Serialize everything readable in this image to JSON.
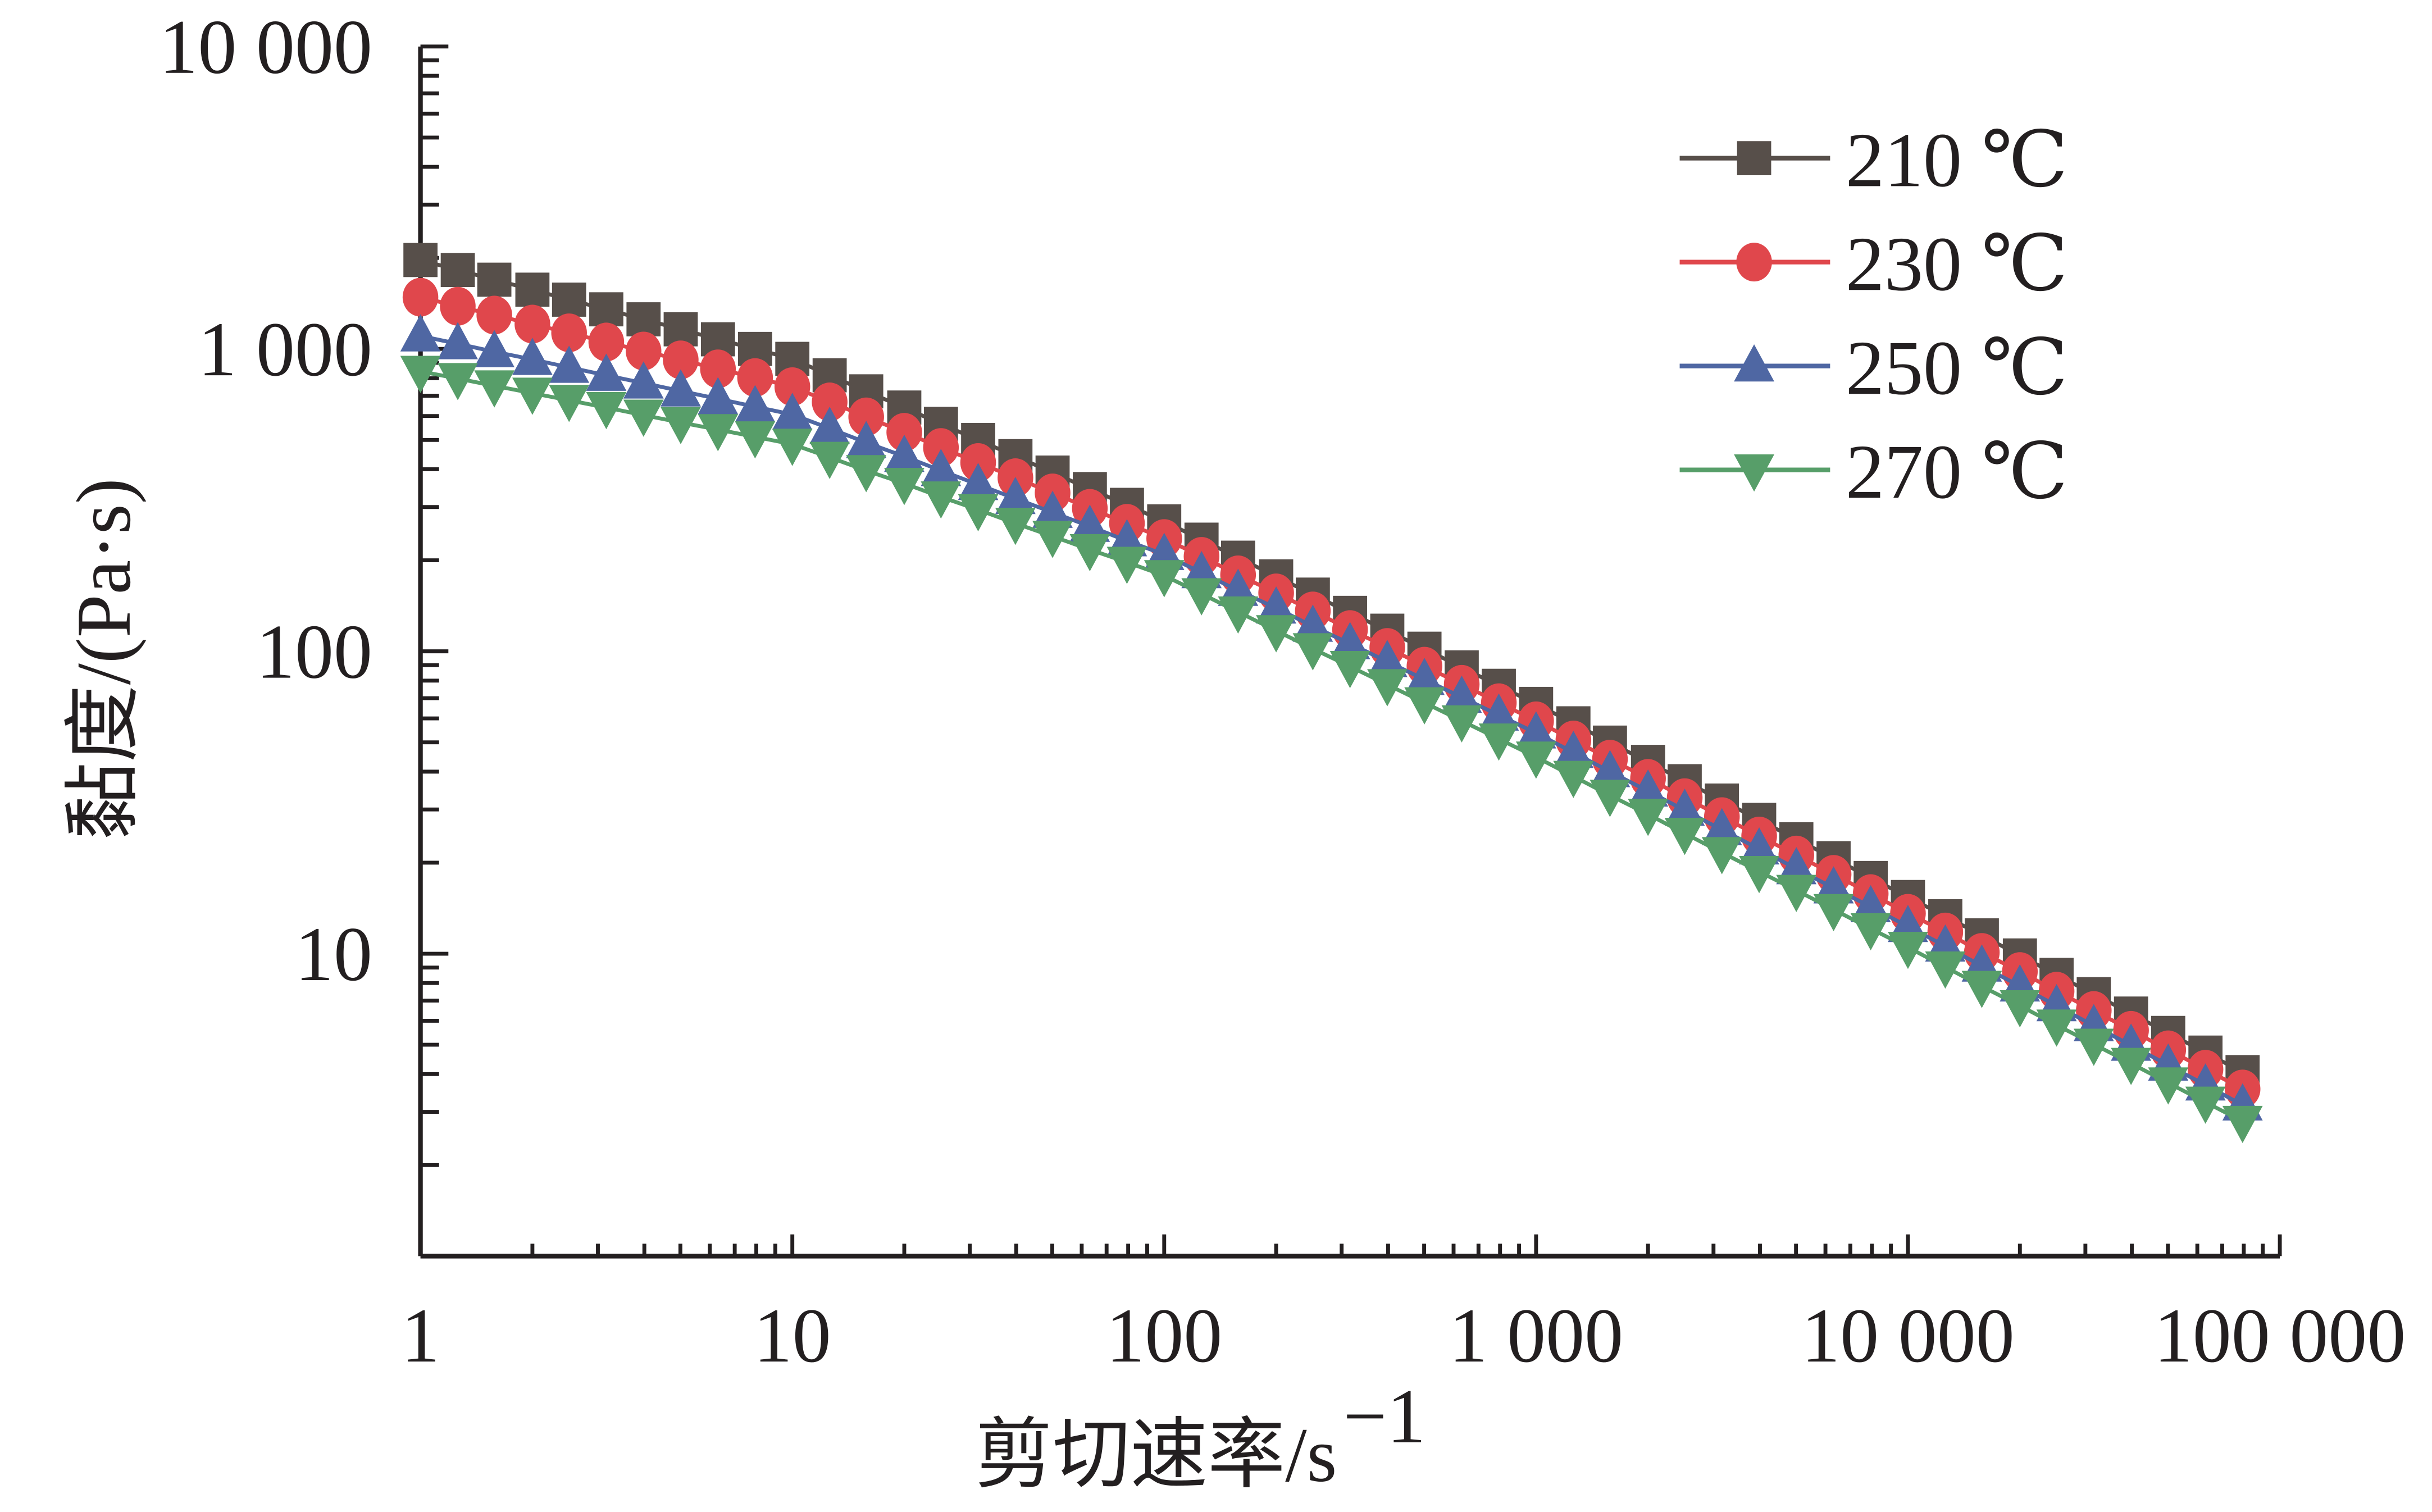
{
  "chart_data": {
    "type": "scatter",
    "title": "",
    "xlabel": "剪切速率/s",
    "xlabel_superscript": "−1",
    "ylabel": "黏度/(Pa·s)",
    "xscale": "log",
    "yscale": "log",
    "xlim": [
      1,
      100000
    ],
    "ylim": [
      1,
      10000
    ],
    "grid": false,
    "legend_position": "top-right",
    "x_ticks": [
      1,
      10,
      100,
      1000,
      10000,
      100000
    ],
    "x_tick_labels": [
      "1",
      "10",
      "100",
      "1 000",
      "10 000",
      "100 000"
    ],
    "y_ticks": [
      10,
      100,
      1000,
      10000
    ],
    "y_tick_labels": [
      "10",
      "100",
      "1 000",
      "10 000"
    ],
    "x": [
      1,
      1.26,
      1.58,
      2,
      2.51,
      3.16,
      3.98,
      5.01,
      6.31,
      7.94,
      10,
      12.6,
      15.8,
      20,
      25.1,
      31.6,
      39.8,
      50.1,
      63.1,
      79.4,
      100,
      126,
      158,
      200,
      251,
      316,
      398,
      501,
      631,
      794,
      1000,
      1260,
      1580,
      2000,
      2510,
      3160,
      3980,
      5010,
      6310,
      7940,
      10000,
      12600,
      15800,
      20000,
      25100,
      31600,
      39800,
      50100,
      63100,
      79400
    ],
    "series": [
      {
        "name": "210 ℃",
        "marker": "square",
        "color": "#574f4a",
        "values": [
          1968,
          1824,
          1694,
          1570,
          1455,
          1352,
          1253,
          1161,
          1076,
          1000,
          927,
          818,
          724,
          640,
          565,
          500,
          442,
          390,
          344,
          305,
          269,
          234,
          204,
          177,
          154,
          134,
          117,
          102,
          88.5,
          76.9,
          67.0,
          57.8,
          49.9,
          43.1,
          37.2,
          32.1,
          27.7,
          23.9,
          20.7,
          17.8,
          15.4,
          13.3,
          11.5,
          9.87,
          8.51,
          7.35,
          6.34,
          5.47,
          4.71,
          4.06
        ]
      },
      {
        "name": "230 ℃",
        "marker": "circle",
        "color": "#e0474c",
        "values": [
          1483,
          1384,
          1294,
          1208,
          1130,
          1054,
          984,
          920,
          859,
          804,
          750,
          668,
          596,
          530,
          472,
          421,
          375,
          334,
          297,
          265,
          236,
          206,
          179,
          156,
          136,
          118,
          103,
          89.3,
          77.8,
          67.6,
          58.9,
          50.9,
          44.0,
          38.0,
          32.8,
          28.4,
          24.5,
          21.2,
          18.3,
          15.8,
          13.6,
          11.8,
          10.1,
          8.73,
          7.52,
          6.49,
          5.58,
          4.81,
          4.15,
          3.57
        ]
      },
      {
        "name": "250 ℃",
        "marker": "triangle-up",
        "color": "#4f67a3",
        "values": [
          1104,
          1040,
          979,
          923,
          869,
          818,
          771,
          726,
          684,
          644,
          607,
          546,
          490,
          441,
          396,
          356,
          320,
          288,
          259,
          232,
          209,
          182,
          159,
          139,
          121,
          106,
          92.5,
          80.7,
          70.5,
          61.5,
          53.7,
          46.3,
          40.0,
          34.5,
          29.8,
          25.7,
          22.2,
          19.1,
          16.5,
          14.3,
          12.3,
          10.6,
          9.1,
          7.82,
          6.73,
          5.78,
          4.98,
          4.28,
          3.68,
          3.16
        ]
      },
      {
        "name": "270 ℃",
        "marker": "triangle-down",
        "color": "#579e69",
        "values": [
          843,
          798,
          755,
          714,
          676,
          640,
          604,
          571,
          541,
          512,
          484,
          438,
          396,
          359,
          324,
          294,
          265,
          240,
          217,
          197,
          178,
          155,
          135,
          117,
          102,
          89.1,
          77.6,
          67.6,
          58.9,
          51.3,
          44.7,
          38.6,
          33.4,
          28.9,
          25.0,
          21.6,
          18.7,
          16.2,
          14.0,
          12.1,
          10.5,
          9.04,
          7.8,
          6.73,
          5.81,
          5.02,
          4.34,
          3.74,
          3.23,
          2.79
        ]
      }
    ]
  }
}
